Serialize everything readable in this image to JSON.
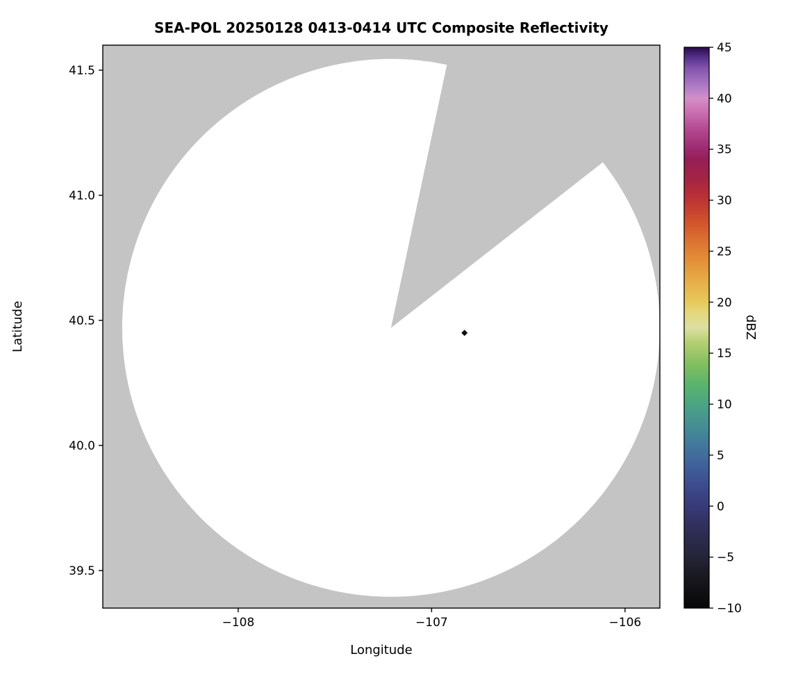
{
  "chart_data": {
    "type": "radar_ppi_map",
    "title": "SEA-POL 20250128 0413-0414 UTC Composite Reflectivity",
    "xlabel": "Longitude",
    "ylabel": "Latitude",
    "xlim": [
      -108.7,
      -105.82
    ],
    "ylim": [
      39.35,
      41.6
    ],
    "xticks": {
      "values": [
        -108,
        -107,
        -106
      ],
      "labels": [
        "−108",
        "−107",
        "−106"
      ]
    },
    "yticks": {
      "values": [
        39.5,
        40.0,
        40.5,
        41.0,
        41.5
      ],
      "labels": [
        "39.5",
        "40.0",
        "40.5",
        "41.0",
        "41.5"
      ]
    },
    "grid": false,
    "masked_background_color": "#c4c4c4",
    "coverage": {
      "center_lon": -107.21,
      "center_lat": 40.47,
      "radius_deg_lat": 1.075,
      "blocked_sector_azimuth_deg": [
        12,
        52
      ],
      "fill_color": "#ffffff"
    },
    "echoes": [
      {
        "lon": -106.83,
        "lat": 40.45,
        "dbz": -9,
        "color": "#0d0d14"
      }
    ],
    "colorbar": {
      "label": "dBZ",
      "vmin": -10,
      "vmax": 45,
      "ticks": [
        -10,
        -5,
        0,
        5,
        10,
        15,
        20,
        25,
        30,
        35,
        40,
        45
      ],
      "tick_labels": [
        "−10",
        "−5",
        "0",
        "5",
        "10",
        "15",
        "20",
        "25",
        "30",
        "35",
        "40",
        "45"
      ],
      "stops": [
        {
          "v": -10,
          "c": "#070707"
        },
        {
          "v": -7,
          "c": "#18181f"
        },
        {
          "v": -5,
          "c": "#242438"
        },
        {
          "v": -2,
          "c": "#30305c"
        },
        {
          "v": 0,
          "c": "#373a78"
        },
        {
          "v": 2,
          "c": "#3c4b8e"
        },
        {
          "v": 4,
          "c": "#40619b"
        },
        {
          "v": 6,
          "c": "#42789d"
        },
        {
          "v": 8,
          "c": "#458f93"
        },
        {
          "v": 10,
          "c": "#4aa583"
        },
        {
          "v": 12,
          "c": "#5cb46b"
        },
        {
          "v": 14,
          "c": "#83bf60"
        },
        {
          "v": 16,
          "c": "#b3cf72"
        },
        {
          "v": 17.5,
          "c": "#dcdfa0"
        },
        {
          "v": 19,
          "c": "#e5d77b"
        },
        {
          "v": 20,
          "c": "#e7c95b"
        },
        {
          "v": 22,
          "c": "#e7ae48"
        },
        {
          "v": 24,
          "c": "#e39139"
        },
        {
          "v": 26,
          "c": "#dc7230"
        },
        {
          "v": 28,
          "c": "#d0512c"
        },
        {
          "v": 30,
          "c": "#bd3433"
        },
        {
          "v": 32,
          "c": "#a52442"
        },
        {
          "v": 34,
          "c": "#951e55"
        },
        {
          "v": 35,
          "c": "#9c2a6e"
        },
        {
          "v": 37,
          "c": "#b44a92"
        },
        {
          "v": 39,
          "c": "#cf77b6"
        },
        {
          "v": 40,
          "c": "#d38fc7"
        },
        {
          "v": 41,
          "c": "#b27fc8"
        },
        {
          "v": 43,
          "c": "#8153ab"
        },
        {
          "v": 44,
          "c": "#56308c"
        },
        {
          "v": 45,
          "c": "#2a0c47"
        }
      ]
    }
  }
}
